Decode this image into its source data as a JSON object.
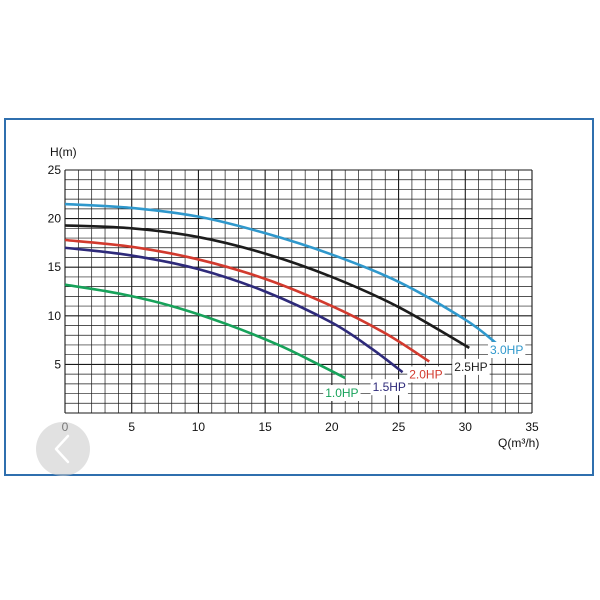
{
  "chart_data": {
    "type": "line",
    "title": "",
    "xlabel": "Q(m³/h)",
    "ylabel": "H(m)",
    "xlim": [
      0,
      35
    ],
    "ylim": [
      0,
      25
    ],
    "x_ticks": [
      0,
      5,
      10,
      15,
      20,
      25,
      30,
      35
    ],
    "y_ticks": [
      5,
      10,
      15,
      20,
      25
    ],
    "grid": true,
    "series": [
      {
        "name": "1.0HP",
        "color": "#17a25a",
        "x": [
          0,
          4,
          8,
          12,
          16,
          19,
          21
        ],
        "y": [
          13.2,
          12.3,
          11.0,
          9.2,
          7.0,
          5.0,
          3.6
        ]
      },
      {
        "name": "1.5HP",
        "color": "#2e2a7a",
        "x": [
          0,
          5,
          10,
          15,
          20,
          23,
          25.3
        ],
        "y": [
          17.0,
          16.2,
          14.8,
          12.5,
          9.3,
          6.6,
          4.2
        ]
      },
      {
        "name": "2.0HP",
        "color": "#d23a2e",
        "x": [
          0,
          5,
          10,
          15,
          20,
          24,
          27.3
        ],
        "y": [
          17.8,
          17.1,
          15.8,
          13.8,
          11.0,
          8.2,
          5.3
        ]
      },
      {
        "name": "2.5HP",
        "color": "#1c1c1c",
        "x": [
          0,
          5,
          10,
          15,
          20,
          25,
          30.3
        ],
        "y": [
          19.3,
          19.0,
          18.1,
          16.4,
          14.0,
          10.9,
          6.7
        ]
      },
      {
        "name": "3.0HP",
        "color": "#2f98cc",
        "x": [
          0,
          5,
          10,
          15,
          20,
          25,
          30,
          32.3
        ],
        "y": [
          21.5,
          21.1,
          20.2,
          18.5,
          16.3,
          13.5,
          9.6,
          7.2
        ]
      }
    ]
  }
}
